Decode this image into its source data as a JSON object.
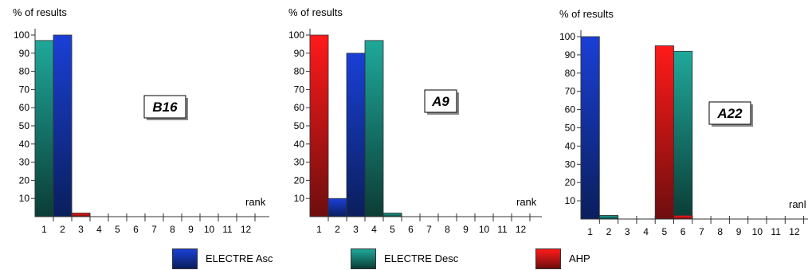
{
  "colors": {
    "electre_asc": [
      "#1a3fd6",
      "#0a1f5c"
    ],
    "electre_desc": [
      "#1fa89a",
      "#0b3d36"
    ],
    "ahp": [
      "#ff1a1a",
      "#6e0e0e"
    ]
  },
  "legend": [
    {
      "label": "ELECTRE Asc",
      "key": "electre_asc"
    },
    {
      "label": "ELECTRE Desc",
      "key": "electre_desc"
    },
    {
      "label": "AHP",
      "key": "ahp"
    }
  ],
  "chart_data": [
    {
      "type": "bar",
      "title": "B16",
      "ylabel": "% of results",
      "xlabel": "rank",
      "ylim": [
        0,
        100
      ],
      "yticks": [
        "10",
        "20",
        "30",
        "40",
        "50",
        "60",
        "70",
        "80",
        "90",
        "100"
      ],
      "categories": [
        "1",
        "2",
        "3",
        "4",
        "5",
        "6",
        "7",
        "8",
        "9",
        "10",
        "11",
        "12"
      ],
      "series": [
        {
          "name": "ELECTRE Asc",
          "key": "electre_asc",
          "values": [
            0,
            100,
            0,
            0,
            0,
            0,
            0,
            0,
            0,
            0,
            0,
            0
          ]
        },
        {
          "name": "ELECTRE Desc",
          "key": "electre_desc",
          "values": [
            97,
            2,
            0,
            0,
            0,
            0,
            0,
            0,
            0,
            0,
            0,
            0
          ]
        },
        {
          "name": "AHP",
          "key": "ahp",
          "values": [
            0,
            97,
            2,
            0,
            0,
            0,
            0,
            0,
            0,
            0,
            0,
            0
          ]
        }
      ]
    },
    {
      "type": "bar",
      "title": "A9",
      "ylabel": "% of results",
      "xlabel": "rank",
      "ylim": [
        0,
        100
      ],
      "yticks": [
        "10",
        "20",
        "30",
        "40",
        "50",
        "60",
        "70",
        "80",
        "90",
        "100"
      ],
      "categories": [
        "1",
        "2",
        "3",
        "4",
        "5",
        "6",
        "7",
        "8",
        "9",
        "10",
        "11",
        "12"
      ],
      "series": [
        {
          "name": "ELECTRE Asc",
          "key": "electre_asc",
          "values": [
            0,
            10,
            90,
            0,
            0,
            0,
            0,
            0,
            0,
            0,
            0,
            0
          ]
        },
        {
          "name": "ELECTRE Desc",
          "key": "electre_desc",
          "values": [
            0,
            0,
            0,
            97,
            2,
            0,
            0,
            0,
            0,
            0,
            0,
            0
          ]
        },
        {
          "name": "AHP",
          "key": "ahp",
          "values": [
            100,
            0,
            0,
            0,
            0,
            0,
            0,
            0,
            0,
            0,
            0,
            0
          ]
        }
      ]
    },
    {
      "type": "bar",
      "title": "A22",
      "ylabel": "% of results",
      "xlabel": "ranl",
      "ylim": [
        0,
        100
      ],
      "yticks": [
        "10",
        "20",
        "30",
        "40",
        "50",
        "60",
        "70",
        "80",
        "90",
        "100"
      ],
      "categories": [
        "1",
        "2",
        "3",
        "4",
        "5",
        "6",
        "7",
        "8",
        "9",
        "10",
        "11",
        "12"
      ],
      "series": [
        {
          "name": "ELECTRE Asc",
          "key": "electre_asc",
          "values": [
            100,
            0,
            0,
            0,
            0,
            0,
            0,
            0,
            0,
            0,
            0,
            0
          ]
        },
        {
          "name": "ELECTRE Desc",
          "key": "electre_desc",
          "values": [
            2,
            2,
            0,
            0,
            0,
            92,
            0,
            0,
            0,
            0,
            0,
            0
          ]
        },
        {
          "name": "AHP",
          "key": "ahp",
          "values": [
            0,
            0,
            0,
            0,
            95,
            2,
            0,
            0,
            0,
            0,
            0,
            0
          ]
        }
      ]
    }
  ]
}
